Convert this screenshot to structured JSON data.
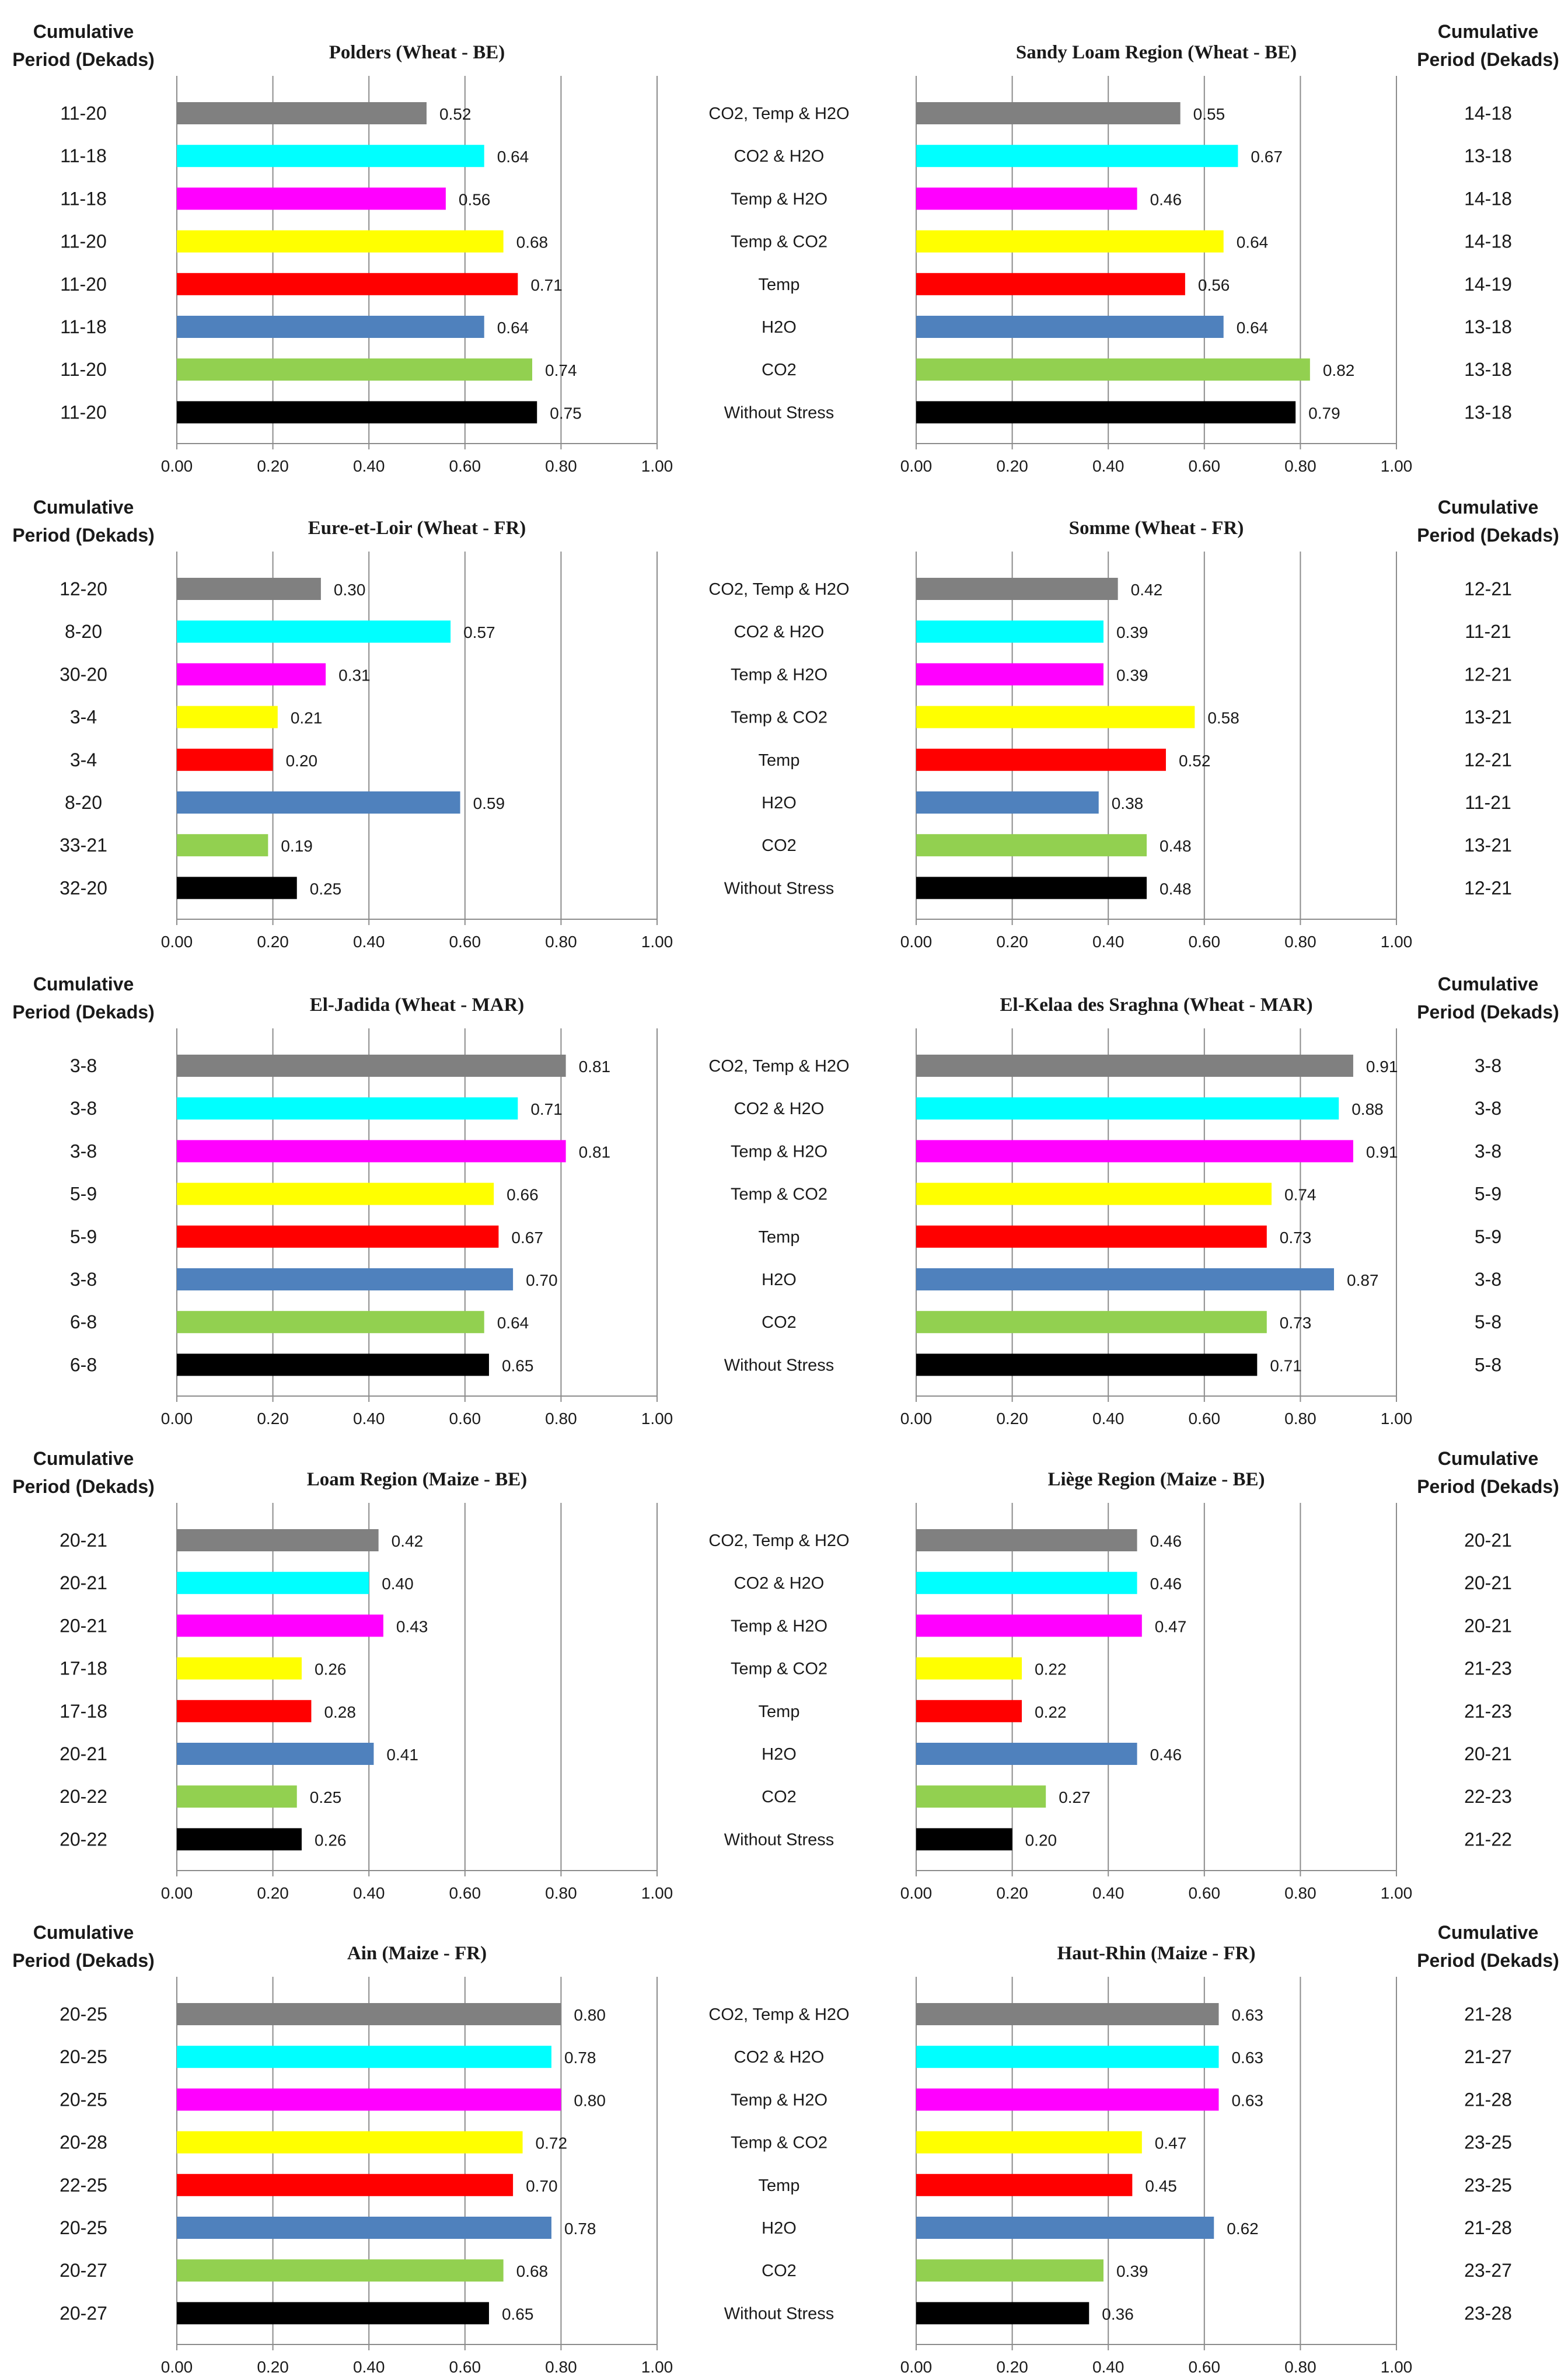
{
  "header_label": [
    "Cumulative",
    "Period (Dekads)"
  ],
  "categories": [
    "CO2, Temp & H2O",
    "CO2 & H2O",
    "Temp & H2O",
    "Temp & CO2",
    "Temp",
    "H2O",
    "CO2",
    "Without Stress"
  ],
  "colors": [
    "#808080",
    "#00ffff",
    "#ff00ff",
    "#ffff00",
    "#ff0000",
    "#4f81bd",
    "#92d050",
    "#000000"
  ],
  "x_ticks": [
    "0.00",
    "0.20",
    "0.40",
    "0.60",
    "0.80",
    "1.00"
  ],
  "chart_data": [
    {
      "type": "bar",
      "title": "Polders (Wheat - BE)",
      "xlim": [
        0,
        1
      ],
      "categories": [
        "CO2, Temp & H2O",
        "CO2 & H2O",
        "Temp & H2O",
        "Temp & CO2",
        "Temp",
        "H2O",
        "CO2",
        "Without Stress"
      ],
      "values": [
        0.52,
        0.64,
        0.56,
        0.68,
        0.71,
        0.64,
        0.74,
        0.75
      ],
      "labels": [
        "0.52",
        "0.64",
        "0.56",
        "0.68",
        "0.71",
        "0.64",
        "0.74",
        "0.75"
      ],
      "periods": [
        "11-20",
        "11-18",
        "11-18",
        "11-20",
        "11-20",
        "11-18",
        "11-20",
        "11-20"
      ]
    },
    {
      "type": "bar",
      "title": "Sandy Loam Region (Wheat - BE)",
      "xlim": [
        0,
        1
      ],
      "categories": [
        "CO2, Temp & H2O",
        "CO2 & H2O",
        "Temp & H2O",
        "Temp & CO2",
        "Temp",
        "H2O",
        "CO2",
        "Without Stress"
      ],
      "values": [
        0.55,
        0.67,
        0.46,
        0.64,
        0.56,
        0.64,
        0.82,
        0.79
      ],
      "labels": [
        "0.55",
        "0.67",
        "0.46",
        "0.64",
        "0.56",
        "0.64",
        "0.82",
        "0.79"
      ],
      "periods": [
        "14-18",
        "13-18",
        "14-18",
        "14-18",
        "14-19",
        "13-18",
        "13-18",
        "13-18"
      ]
    },
    {
      "type": "bar",
      "title": "Eure-et-Loir (Wheat - FR)",
      "xlim": [
        0,
        1
      ],
      "categories": [
        "CO2, Temp & H2O",
        "CO2 & H2O",
        "Temp & H2O",
        "Temp & CO2",
        "Temp",
        "H2O",
        "CO2",
        "Without Stress"
      ],
      "values": [
        0.3,
        0.57,
        0.31,
        0.21,
        0.2,
        0.59,
        0.19,
        0.25
      ],
      "labels": [
        "0.30",
        "0.57",
        "0.31",
        "0.21",
        "0.20",
        "0.59",
        "0.19",
        "0.25"
      ],
      "periods": [
        "12-20",
        "8-20",
        "30-20",
        "3-4",
        "3-4",
        "8-20",
        "33-21",
        "32-20"
      ]
    },
    {
      "type": "bar",
      "title": "Somme (Wheat - FR)",
      "xlim": [
        0,
        1
      ],
      "categories": [
        "CO2, Temp & H2O",
        "CO2 & H2O",
        "Temp & H2O",
        "Temp & CO2",
        "Temp",
        "H2O",
        "CO2",
        "Without Stress"
      ],
      "values": [
        0.42,
        0.39,
        0.39,
        0.58,
        0.52,
        0.38,
        0.48,
        0.48
      ],
      "labels": [
        "0.42",
        "0.39",
        "0.39",
        "0.58",
        "0.52",
        "0.38",
        "0.48",
        "0.48"
      ],
      "periods": [
        "12-21",
        "11-21",
        "12-21",
        "13-21",
        "12-21",
        "11-21",
        "13-21",
        "12-21"
      ]
    },
    {
      "type": "bar",
      "title": "El-Jadida (Wheat - MAR)",
      "xlim": [
        0,
        1
      ],
      "categories": [
        "CO2, Temp & H2O",
        "CO2 & H2O",
        "Temp & H2O",
        "Temp & CO2",
        "Temp",
        "H2O",
        "CO2",
        "Without Stress"
      ],
      "values": [
        0.81,
        0.71,
        0.81,
        0.66,
        0.67,
        0.7,
        0.64,
        0.65
      ],
      "labels": [
        "0.81",
        "0.71",
        "0.81",
        "0.66",
        "0.67",
        "0.70",
        "0.64",
        "0.65"
      ],
      "periods": [
        "3-8",
        "3-8",
        "3-8",
        "5-9",
        "5-9",
        "3-8",
        "6-8",
        "6-8"
      ]
    },
    {
      "type": "bar",
      "title": "El-Kelaa des Sraghna (Wheat - MAR)",
      "xlim": [
        0,
        1
      ],
      "categories": [
        "CO2, Temp & H2O",
        "CO2 & H2O",
        "Temp & H2O",
        "Temp & CO2",
        "Temp",
        "H2O",
        "CO2",
        "Without Stress"
      ],
      "values": [
        0.91,
        0.88,
        0.91,
        0.74,
        0.73,
        0.87,
        0.73,
        0.71
      ],
      "labels": [
        "0.91",
        "0.88",
        "0.91",
        "0.74",
        "0.73",
        "0.87",
        "0.73",
        "0.71"
      ],
      "periods": [
        "3-8",
        "3-8",
        "3-8",
        "5-9",
        "5-9",
        "3-8",
        "5-8",
        "5-8"
      ]
    },
    {
      "type": "bar",
      "title": "Loam Region (Maize - BE)",
      "xlim": [
        0,
        1
      ],
      "categories": [
        "CO2, Temp & H2O",
        "CO2 & H2O",
        "Temp & H2O",
        "Temp & CO2",
        "Temp",
        "H2O",
        "CO2",
        "Without Stress"
      ],
      "values": [
        0.42,
        0.4,
        0.43,
        0.26,
        0.28,
        0.41,
        0.25,
        0.26
      ],
      "labels": [
        "0.42",
        "0.40",
        "0.43",
        "0.26",
        "0.28",
        "0.41",
        "0.25",
        "0.26"
      ],
      "periods": [
        "20-21",
        "20-21",
        "20-21",
        "17-18",
        "17-18",
        "20-21",
        "20-22",
        "20-22"
      ]
    },
    {
      "type": "bar",
      "title": "Liège Region (Maize - BE)",
      "xlim": [
        0,
        1
      ],
      "categories": [
        "CO2, Temp & H2O",
        "CO2 & H2O",
        "Temp & H2O",
        "Temp & CO2",
        "Temp",
        "H2O",
        "CO2",
        "Without Stress"
      ],
      "values": [
        0.46,
        0.46,
        0.47,
        0.22,
        0.22,
        0.46,
        0.27,
        0.2
      ],
      "labels": [
        "0.46",
        "0.46",
        "0.47",
        "0.22",
        "0.22",
        "0.46",
        "0.27",
        "0.20"
      ],
      "periods": [
        "20-21",
        "20-21",
        "20-21",
        "21-23",
        "21-23",
        "20-21",
        "22-23",
        "21-22"
      ]
    },
    {
      "type": "bar",
      "title": "Ain (Maize - FR)",
      "xlim": [
        0,
        1
      ],
      "categories": [
        "CO2, Temp & H2O",
        "CO2 & H2O",
        "Temp & H2O",
        "Temp & CO2",
        "Temp",
        "H2O",
        "CO2",
        "Without Stress"
      ],
      "values": [
        0.8,
        0.78,
        0.8,
        0.72,
        0.7,
        0.78,
        0.68,
        0.65
      ],
      "labels": [
        "0.80",
        "0.78",
        "0.80",
        "0.72",
        "0.70",
        "0.78",
        "0.68",
        "0.65"
      ],
      "periods": [
        "20-25",
        "20-25",
        "20-25",
        "20-28",
        "22-25",
        "20-25",
        "20-27",
        "20-27"
      ]
    },
    {
      "type": "bar",
      "title": "Haut-Rhin (Maize - FR)",
      "xlim": [
        0,
        1
      ],
      "categories": [
        "CO2, Temp & H2O",
        "CO2 & H2O",
        "Temp & H2O",
        "Temp & CO2",
        "Temp",
        "H2O",
        "CO2",
        "Without Stress"
      ],
      "values": [
        0.63,
        0.63,
        0.63,
        0.47,
        0.45,
        0.62,
        0.39,
        0.36
      ],
      "labels": [
        "0.63",
        "0.63",
        "0.63",
        "0.47",
        "0.45",
        "0.62",
        "0.39",
        "0.36"
      ],
      "periods": [
        "21-28",
        "21-27",
        "21-28",
        "23-25",
        "23-25",
        "21-28",
        "23-27",
        "23-28"
      ]
    }
  ]
}
